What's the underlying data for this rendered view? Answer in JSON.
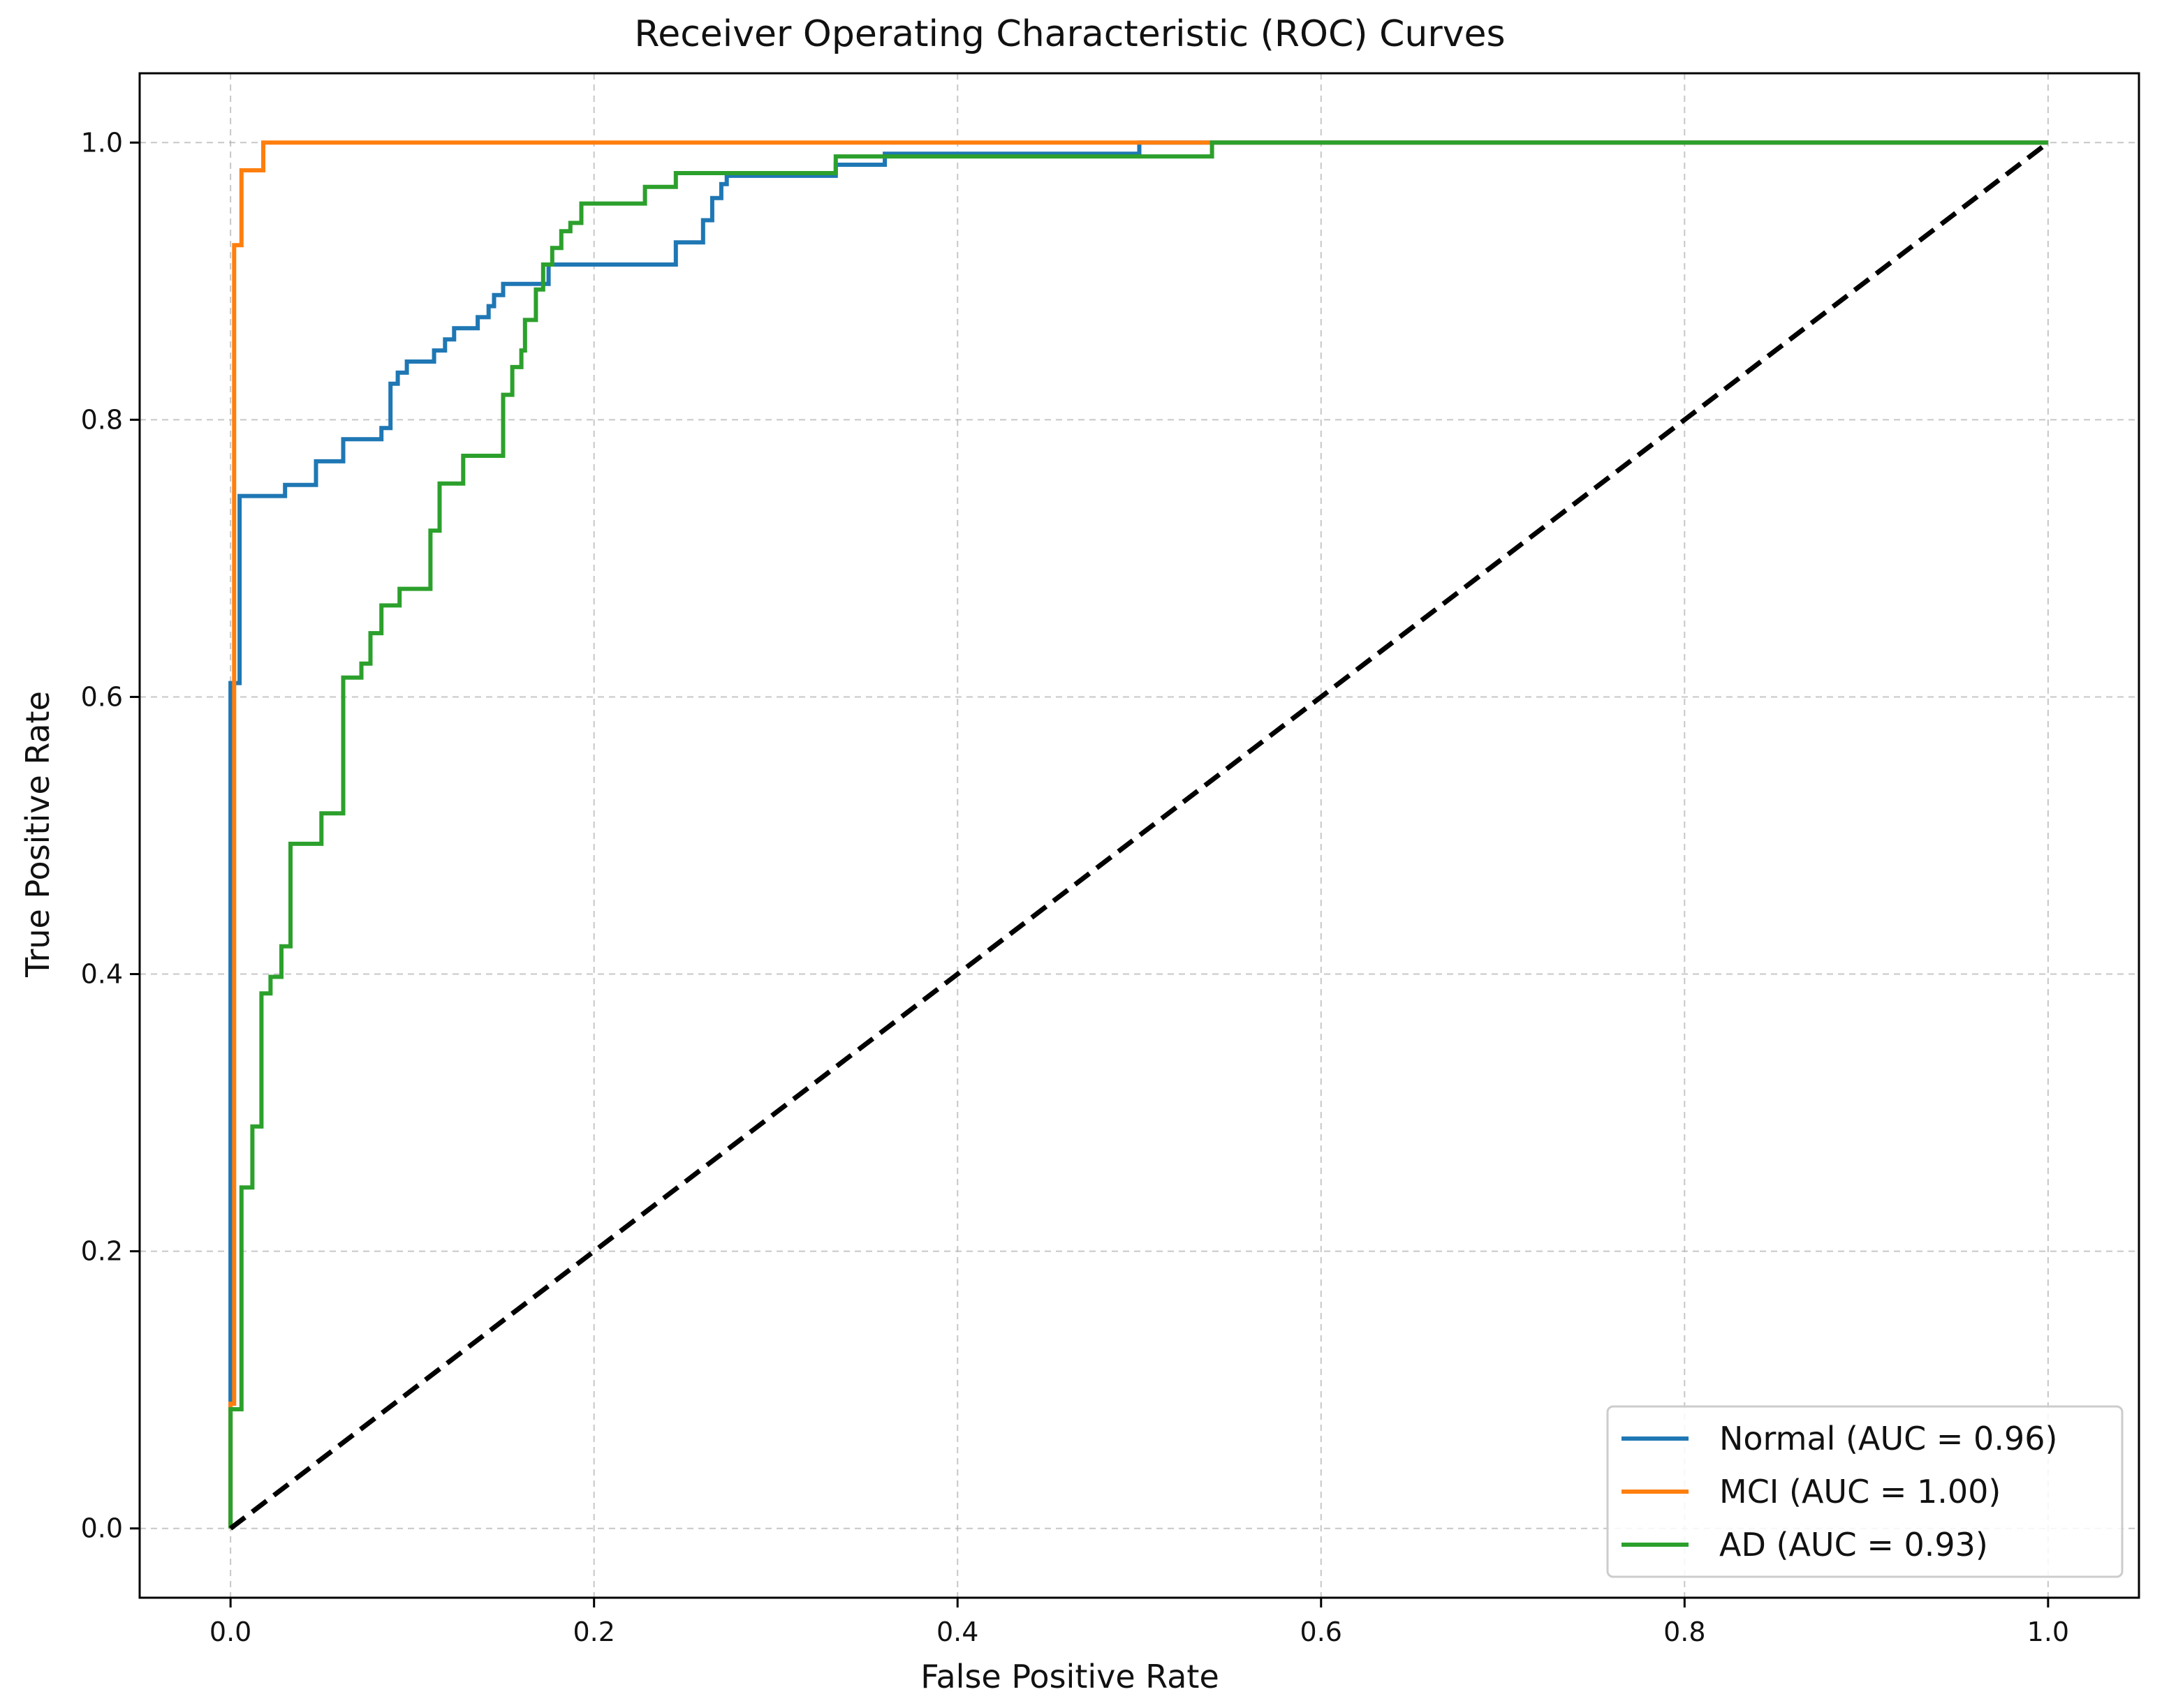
{
  "chart_data": {
    "type": "line",
    "title": "Receiver Operating Characteristic (ROC) Curves",
    "xlabel": "False Positive Rate",
    "ylabel": "True Positive Rate",
    "xlim": [
      -0.05,
      1.05
    ],
    "ylim": [
      -0.05,
      1.05
    ],
    "x_ticks": [
      "0.0",
      "0.2",
      "0.4",
      "0.6",
      "0.8",
      "1.0"
    ],
    "y_ticks": [
      "0.0",
      "0.2",
      "0.4",
      "0.6",
      "0.8",
      "1.0"
    ],
    "grid": true,
    "legend_position": "lower-right",
    "series": [
      {
        "name": "Normal (AUC = 0.96)",
        "color": "#1f77b4",
        "x": [
          0.0,
          0.0,
          0.005,
          0.005,
          0.006,
          0.006,
          0.03,
          0.03,
          0.047,
          0.047,
          0.062,
          0.062,
          0.083,
          0.083,
          0.088,
          0.088,
          0.092,
          0.092,
          0.097,
          0.097,
          0.112,
          0.112,
          0.118,
          0.118,
          0.123,
          0.123,
          0.136,
          0.136,
          0.142,
          0.142,
          0.145,
          0.145,
          0.15,
          0.15,
          0.175,
          0.175,
          0.182,
          0.182,
          0.245,
          0.245,
          0.26,
          0.26,
          0.265,
          0.265,
          0.27,
          0.27,
          0.273,
          0.273,
          0.333,
          0.333,
          0.338,
          0.338,
          0.36,
          0.36,
          0.36,
          0.5,
          0.5,
          0.54,
          1.0
        ],
        "y": [
          0.0,
          0.61,
          0.61,
          0.745,
          0.745,
          0.745,
          0.745,
          0.753,
          0.753,
          0.77,
          0.77,
          0.786,
          0.786,
          0.794,
          0.794,
          0.826,
          0.826,
          0.834,
          0.834,
          0.842,
          0.842,
          0.85,
          0.85,
          0.858,
          0.858,
          0.866,
          0.866,
          0.874,
          0.874,
          0.882,
          0.882,
          0.89,
          0.89,
          0.898,
          0.898,
          0.912,
          0.912,
          0.912,
          0.912,
          0.928,
          0.928,
          0.944,
          0.944,
          0.96,
          0.96,
          0.97,
          0.97,
          0.976,
          0.976,
          0.984,
          0.984,
          0.984,
          0.984,
          0.992,
          0.992,
          0.992,
          1.0,
          1.0,
          1.0
        ]
      },
      {
        "name": "MCI (AUC = 1.00)",
        "color": "#ff7f0e",
        "x": [
          0.0,
          0.0,
          0.002,
          0.002,
          0.006,
          0.006,
          0.018,
          0.018,
          0.54,
          1.0
        ],
        "y": [
          0.0,
          0.09,
          0.09,
          0.926,
          0.926,
          0.98,
          0.98,
          1.0,
          1.0,
          1.0
        ]
      },
      {
        "name": "AD (AUC = 0.93)",
        "color": "#2ca02c",
        "x": [
          0.0,
          0.0,
          0.006,
          0.006,
          0.012,
          0.012,
          0.017,
          0.017,
          0.022,
          0.022,
          0.028,
          0.028,
          0.033,
          0.033,
          0.05,
          0.05,
          0.062,
          0.062,
          0.072,
          0.072,
          0.077,
          0.077,
          0.083,
          0.083,
          0.093,
          0.093,
          0.11,
          0.11,
          0.115,
          0.115,
          0.128,
          0.128,
          0.15,
          0.15,
          0.155,
          0.155,
          0.16,
          0.16,
          0.162,
          0.162,
          0.168,
          0.168,
          0.172,
          0.172,
          0.177,
          0.177,
          0.182,
          0.182,
          0.187,
          0.187,
          0.193,
          0.193,
          0.228,
          0.228,
          0.245,
          0.245,
          0.333,
          0.333,
          0.54,
          0.54,
          1.0
        ],
        "y": [
          0.0,
          0.086,
          0.086,
          0.246,
          0.246,
          0.29,
          0.29,
          0.386,
          0.386,
          0.398,
          0.398,
          0.42,
          0.42,
          0.494,
          0.494,
          0.516,
          0.516,
          0.614,
          0.614,
          0.624,
          0.624,
          0.646,
          0.646,
          0.666,
          0.666,
          0.678,
          0.678,
          0.72,
          0.72,
          0.754,
          0.754,
          0.774,
          0.774,
          0.818,
          0.818,
          0.838,
          0.838,
          0.85,
          0.85,
          0.872,
          0.872,
          0.894,
          0.894,
          0.912,
          0.912,
          0.924,
          0.924,
          0.936,
          0.936,
          0.942,
          0.942,
          0.956,
          0.956,
          0.968,
          0.968,
          0.978,
          0.978,
          0.99,
          0.99,
          1.0,
          1.0
        ]
      },
      {
        "name": "",
        "color": "#000000",
        "style": "dashed",
        "x": [
          0.0,
          1.0
        ],
        "y": [
          0.0,
          1.0
        ]
      }
    ]
  }
}
